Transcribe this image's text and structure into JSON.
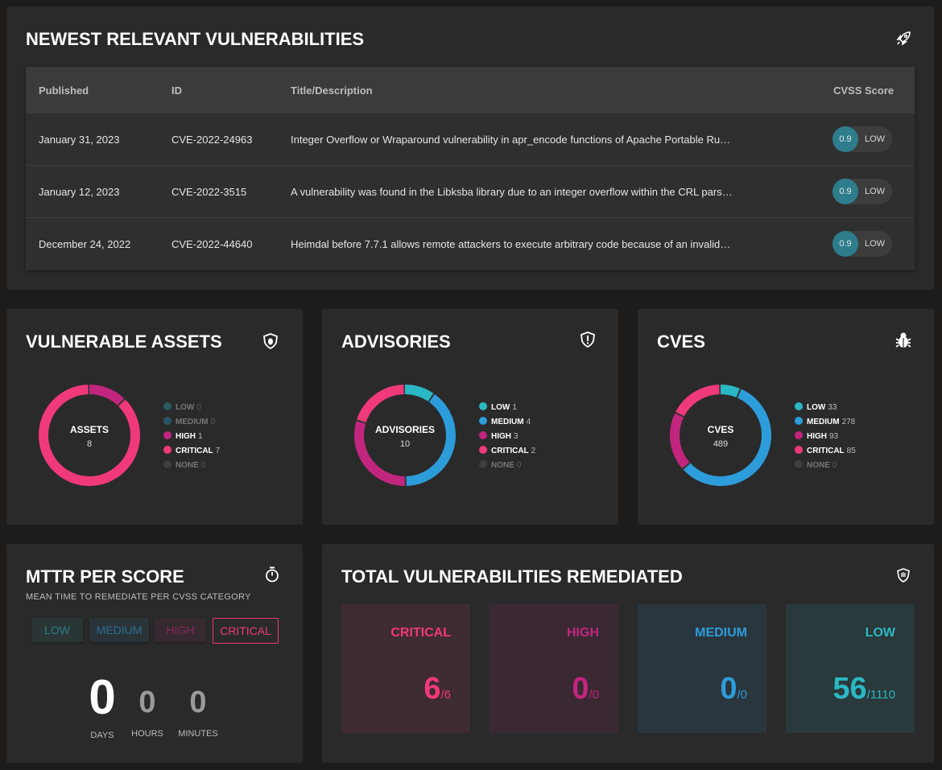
{
  "vulnerabilities": {
    "title": "NEWEST RELEVANT VULNERABILITIES",
    "columns": [
      "Published",
      "ID",
      "Title/Description",
      "CVSS Score"
    ],
    "rows": [
      {
        "published": "January 31, 2023",
        "id": "CVE-2022-24963",
        "description": "Integer Overflow or Wraparound vulnerability in apr_encode functions of Apache Portable Ru…",
        "score": 0.9,
        "severity": "LOW"
      },
      {
        "published": "January 12, 2023",
        "id": "CVE-2022-3515",
        "description": "A vulnerability was found in the Libksba library due to an integer overflow within the CRL pars…",
        "score": 0.9,
        "severity": "LOW"
      },
      {
        "published": "December 24, 2022",
        "id": "CVE-2022-44640",
        "description": "Heimdal before 7.7.1 allows remote attackers to execute arbitrary code because of an invalid…",
        "score": 0.9,
        "severity": "LOW"
      }
    ]
  },
  "assets": {
    "title": "VULNERABLE ASSETS",
    "center_label": "ASSETS",
    "total": 8,
    "legend": [
      {
        "name": "LOW",
        "value": 0,
        "color": "#2ab8c4"
      },
      {
        "name": "MEDIUM",
        "value": 0,
        "color": "#2d9cdb"
      },
      {
        "name": "HIGH",
        "value": 1,
        "color": "#c2257e"
      },
      {
        "name": "CRITICAL",
        "value": 7,
        "color": "#f0397a"
      },
      {
        "name": "NONE",
        "value": 0,
        "color": "#666666"
      }
    ]
  },
  "advisories": {
    "title": "ADVISORIES",
    "center_label": "ADVISORIES",
    "total": 10,
    "legend": [
      {
        "name": "LOW",
        "value": 1,
        "color": "#2ab8c4"
      },
      {
        "name": "MEDIUM",
        "value": 4,
        "color": "#2d9cdb"
      },
      {
        "name": "HIGH",
        "value": 3,
        "color": "#c2257e"
      },
      {
        "name": "CRITICAL",
        "value": 2,
        "color": "#f0397a"
      },
      {
        "name": "NONE",
        "value": 0,
        "color": "#666666"
      }
    ]
  },
  "cves": {
    "title": "CVES",
    "center_label": "CVES",
    "total": 489,
    "legend": [
      {
        "name": "LOW",
        "value": 33,
        "color": "#2ab8c4"
      },
      {
        "name": "MEDIUM",
        "value": 278,
        "color": "#2d9cdb"
      },
      {
        "name": "HIGH",
        "value": 93,
        "color": "#c2257e"
      },
      {
        "name": "CRITICAL",
        "value": 85,
        "color": "#f0397a"
      },
      {
        "name": "NONE",
        "value": 0,
        "color": "#666666"
      }
    ]
  },
  "mttr": {
    "title": "MTTR PER SCORE",
    "subtitle": "MEAN TIME TO REMEDIATE PER CVSS CATEGORY",
    "tabs": [
      {
        "label": "LOW",
        "color": "#2ab8c4"
      },
      {
        "label": "MEDIUM",
        "color": "#2d9cdb"
      },
      {
        "label": "HIGH",
        "color": "#c2257e"
      },
      {
        "label": "CRITICAL",
        "color": "#f0397a"
      }
    ],
    "counters": [
      {
        "value": 0,
        "unit": "DAYS"
      },
      {
        "value": 0,
        "unit": "HOURS"
      },
      {
        "value": 0,
        "unit": "MINUTES"
      }
    ]
  },
  "remediated": {
    "title": "TOTAL VULNERABILITIES REMEDIATED",
    "cards": [
      {
        "label": "CRITICAL",
        "fixed": 6,
        "total": {
          "value": 6,
          "label": "/6"
        },
        "color": "#f0397a"
      },
      {
        "label": "HIGH",
        "fixed": 0,
        "total": {
          "value": 0,
          "label": "/0"
        },
        "color": "#c2257e"
      },
      {
        "label": "MEDIUM",
        "fixed": 0,
        "total": {
          "value": 0,
          "label": "/0"
        },
        "color": "#2d9cdb"
      },
      {
        "label": "LOW",
        "fixed": 56,
        "total": {
          "value": 1110,
          "label": "/1110"
        },
        "color": "#2ab8c4"
      }
    ]
  }
}
